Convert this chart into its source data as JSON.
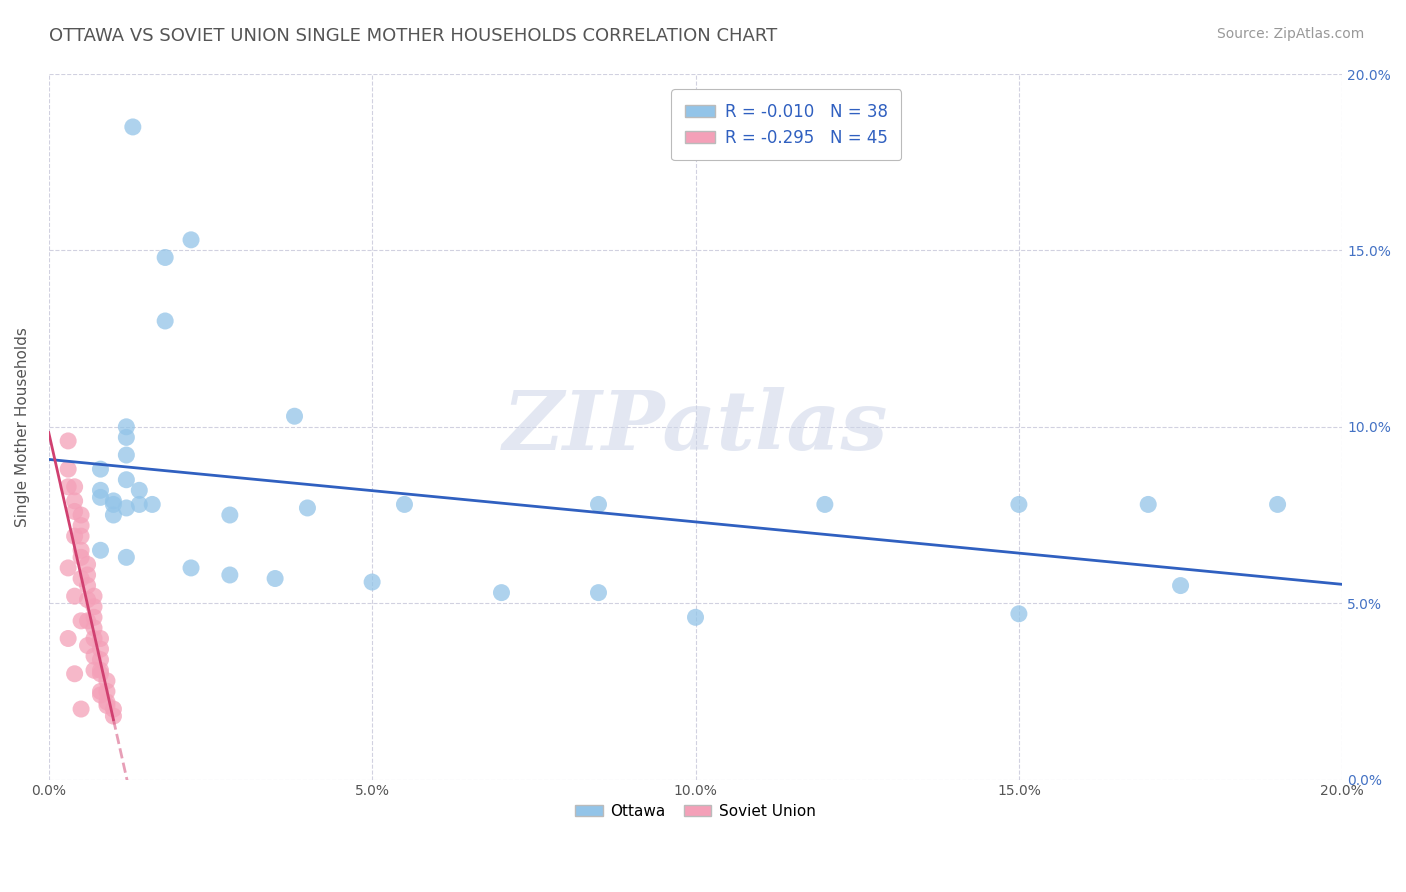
{
  "title": "OTTAWA VS SOVIET UNION SINGLE MOTHER HOUSEHOLDS CORRELATION CHART",
  "source": "Source: ZipAtlas.com",
  "ylabel": "Single Mother Households",
  "xlim": [
    0.0,
    0.2
  ],
  "ylim": [
    0.0,
    0.2
  ],
  "watermark_text": "ZIPatlas",
  "legend_upper_labels": [
    "R = -0.010   N = 38",
    "R = -0.295   N = 45"
  ],
  "legend_bottom_labels": [
    "Ottawa",
    "Soviet Union"
  ],
  "ottawa_color": "#93c4e8",
  "soviet_color": "#f4a0b8",
  "trend_ottawa_color": "#3060c0",
  "trend_soviet_color": "#d04070",
  "grid_color": "#ccccdd",
  "title_fontsize": 13,
  "axis_label_fontsize": 11,
  "tick_fontsize": 10,
  "source_fontsize": 10,
  "background_color": "#ffffff",
  "ottawa_points": [
    [
      0.013,
      0.185
    ],
    [
      0.022,
      0.153
    ],
    [
      0.018,
      0.148
    ],
    [
      0.018,
      0.13
    ],
    [
      0.038,
      0.103
    ],
    [
      0.012,
      0.1
    ],
    [
      0.012,
      0.097
    ],
    [
      0.012,
      0.092
    ],
    [
      0.008,
      0.088
    ],
    [
      0.012,
      0.085
    ],
    [
      0.008,
      0.082
    ],
    [
      0.014,
      0.082
    ],
    [
      0.008,
      0.08
    ],
    [
      0.01,
      0.079
    ],
    [
      0.01,
      0.078
    ],
    [
      0.014,
      0.078
    ],
    [
      0.016,
      0.078
    ],
    [
      0.012,
      0.077
    ],
    [
      0.01,
      0.075
    ],
    [
      0.04,
      0.077
    ],
    [
      0.028,
      0.075
    ],
    [
      0.055,
      0.078
    ],
    [
      0.085,
      0.078
    ],
    [
      0.12,
      0.078
    ],
    [
      0.15,
      0.078
    ],
    [
      0.17,
      0.078
    ],
    [
      0.19,
      0.078
    ],
    [
      0.008,
      0.065
    ],
    [
      0.012,
      0.063
    ],
    [
      0.022,
      0.06
    ],
    [
      0.028,
      0.058
    ],
    [
      0.035,
      0.057
    ],
    [
      0.05,
      0.056
    ],
    [
      0.07,
      0.053
    ],
    [
      0.085,
      0.053
    ],
    [
      0.1,
      0.046
    ],
    [
      0.15,
      0.047
    ],
    [
      0.175,
      0.055
    ]
  ],
  "soviet_points": [
    [
      0.003,
      0.096
    ],
    [
      0.003,
      0.088
    ],
    [
      0.004,
      0.083
    ],
    [
      0.004,
      0.079
    ],
    [
      0.005,
      0.075
    ],
    [
      0.005,
      0.072
    ],
    [
      0.005,
      0.069
    ],
    [
      0.005,
      0.065
    ],
    [
      0.006,
      0.061
    ],
    [
      0.006,
      0.058
    ],
    [
      0.006,
      0.055
    ],
    [
      0.007,
      0.052
    ],
    [
      0.007,
      0.049
    ],
    [
      0.007,
      0.046
    ],
    [
      0.007,
      0.043
    ],
    [
      0.008,
      0.04
    ],
    [
      0.008,
      0.037
    ],
    [
      0.008,
      0.034
    ],
    [
      0.008,
      0.031
    ],
    [
      0.009,
      0.028
    ],
    [
      0.009,
      0.025
    ],
    [
      0.009,
      0.022
    ],
    [
      0.01,
      0.02
    ],
    [
      0.01,
      0.018
    ],
    [
      0.003,
      0.083
    ],
    [
      0.004,
      0.076
    ],
    [
      0.004,
      0.069
    ],
    [
      0.005,
      0.063
    ],
    [
      0.005,
      0.057
    ],
    [
      0.006,
      0.051
    ],
    [
      0.006,
      0.045
    ],
    [
      0.007,
      0.04
    ],
    [
      0.007,
      0.035
    ],
    [
      0.008,
      0.03
    ],
    [
      0.008,
      0.025
    ],
    [
      0.009,
      0.021
    ],
    [
      0.003,
      0.06
    ],
    [
      0.004,
      0.052
    ],
    [
      0.005,
      0.045
    ],
    [
      0.006,
      0.038
    ],
    [
      0.007,
      0.031
    ],
    [
      0.008,
      0.024
    ],
    [
      0.003,
      0.04
    ],
    [
      0.004,
      0.03
    ],
    [
      0.005,
      0.02
    ]
  ]
}
